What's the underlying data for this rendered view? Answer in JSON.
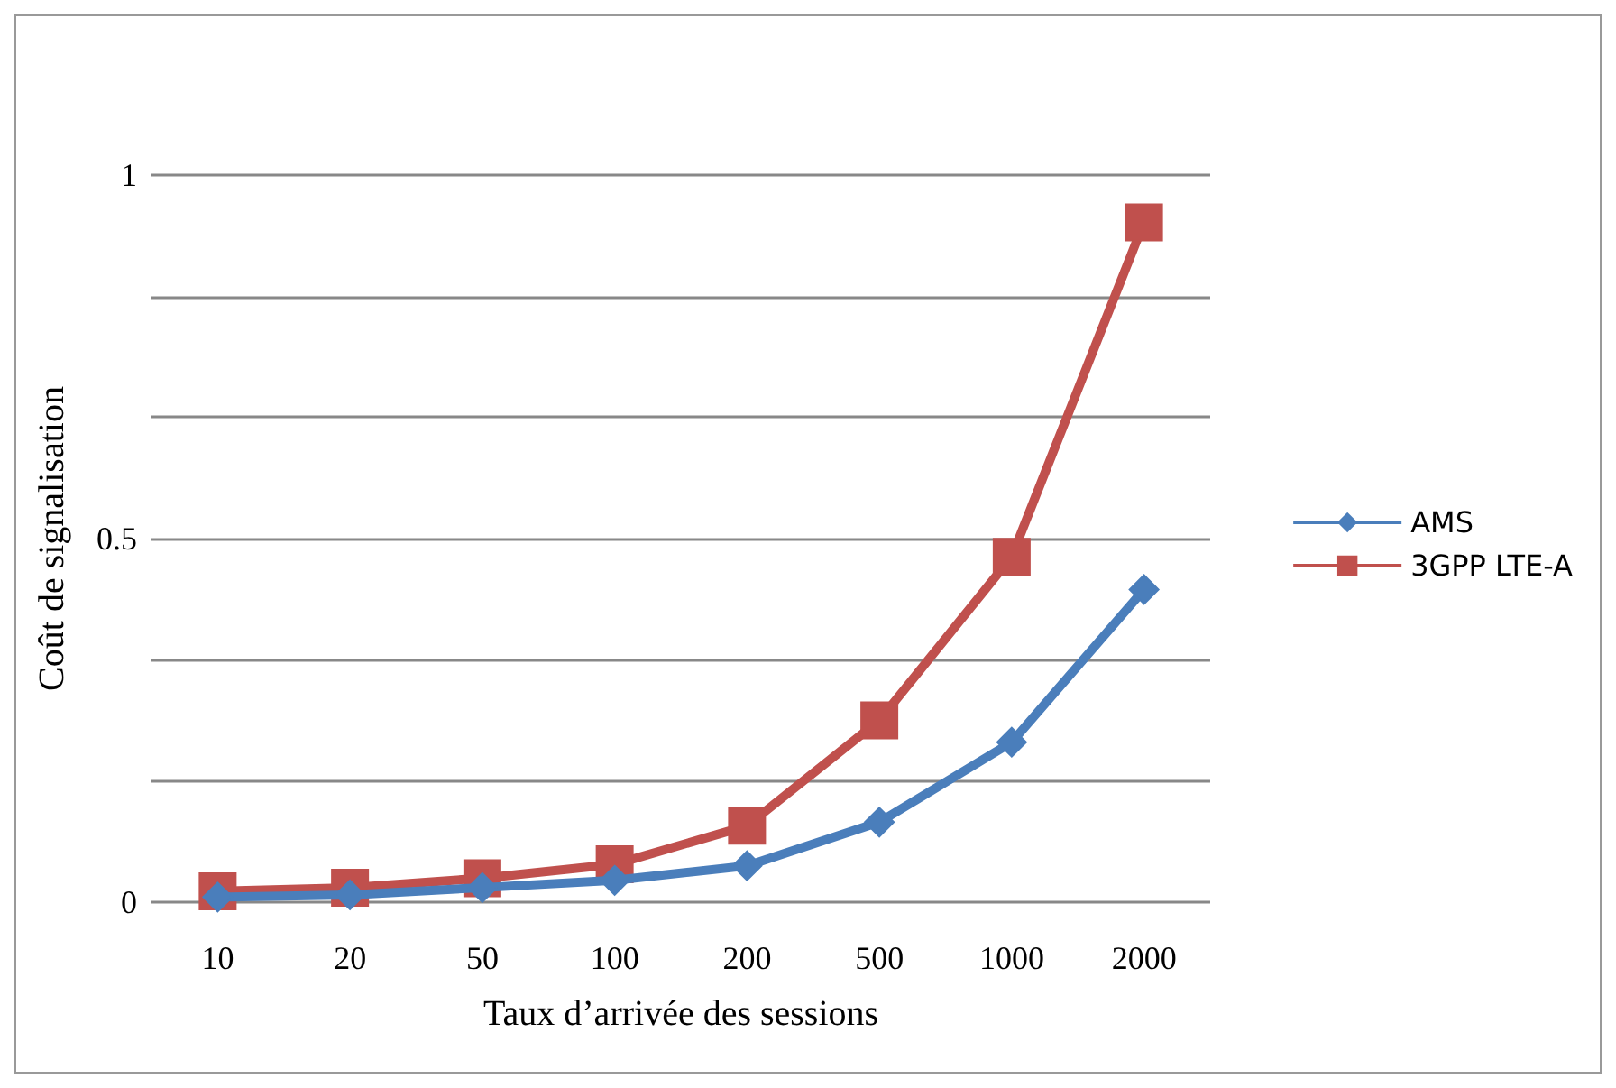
{
  "chart_data": {
    "type": "line",
    "xlabel": "Taux d’arrivée des sessions",
    "ylabel": "Coût de signalisation",
    "categories": [
      "10",
      "20",
      "50",
      "100",
      "200",
      "500",
      "1000",
      "2000"
    ],
    "series": [
      {
        "name": "AMS",
        "color": "#4a7ebb",
        "marker": "diamond",
        "values": [
          0.007,
          0.01,
          0.02,
          0.03,
          0.05,
          0.11,
          0.22,
          0.43
        ]
      },
      {
        "name": "3GPP LTE-A",
        "color": "#c0504d",
        "marker": "square",
        "values": [
          0.015,
          0.02,
          0.033,
          0.052,
          0.105,
          0.25,
          0.475,
          0.935
        ]
      }
    ],
    "ylim": [
      0,
      1
    ],
    "yticks": [
      0,
      {
        "value": 0.167,
        "label": null
      },
      {
        "value": 0.333,
        "label": null
      },
      0.5,
      {
        "value": 0.667,
        "label": null
      },
      {
        "value": 0.833,
        "label": null
      },
      1
    ],
    "grid": "y",
    "legend": "right"
  }
}
